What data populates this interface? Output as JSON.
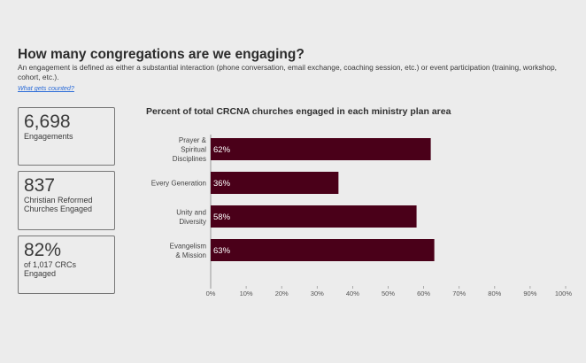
{
  "header": {
    "title": "How many congregations are we engaging?",
    "description": "An engagement is defined as either a substantial interaction (phone conversation, email exchange, coaching session, etc.) or event participation (training, workshop, cohort, etc.).",
    "link_label": "What gets counted?"
  },
  "cards": [
    {
      "value": "6,698",
      "label": "Engagements"
    },
    {
      "value": "837",
      "label": "Christian Reformed Churches Engaged"
    },
    {
      "value": "82%",
      "label": "of 1,017 CRCs Engaged"
    }
  ],
  "chart_data": {
    "type": "bar",
    "orientation": "horizontal",
    "title": "Percent of total CRCNA churches engaged in each ministry plan area",
    "categories": [
      "Prayer & Spiritual Disciplines",
      "Every Generation",
      "Unity and Diversity",
      "Evangelism & Mission"
    ],
    "category_lines": [
      [
        "Prayer &",
        "Spiritual",
        "Disciplines"
      ],
      [
        "Every Generation"
      ],
      [
        "Unity and",
        "Diversity"
      ],
      [
        "Evangelism",
        "& Mission"
      ]
    ],
    "values": [
      62,
      36,
      58,
      63
    ],
    "data_labels": [
      "62%",
      "36%",
      "58%",
      "63%"
    ],
    "xlim": [
      0,
      100
    ],
    "xticks": [
      "0%",
      "10%",
      "20%",
      "30%",
      "40%",
      "50%",
      "60%",
      "70%",
      "80%",
      "90%",
      "100%"
    ],
    "bar_color": "#4a0019",
    "grid": false
  }
}
